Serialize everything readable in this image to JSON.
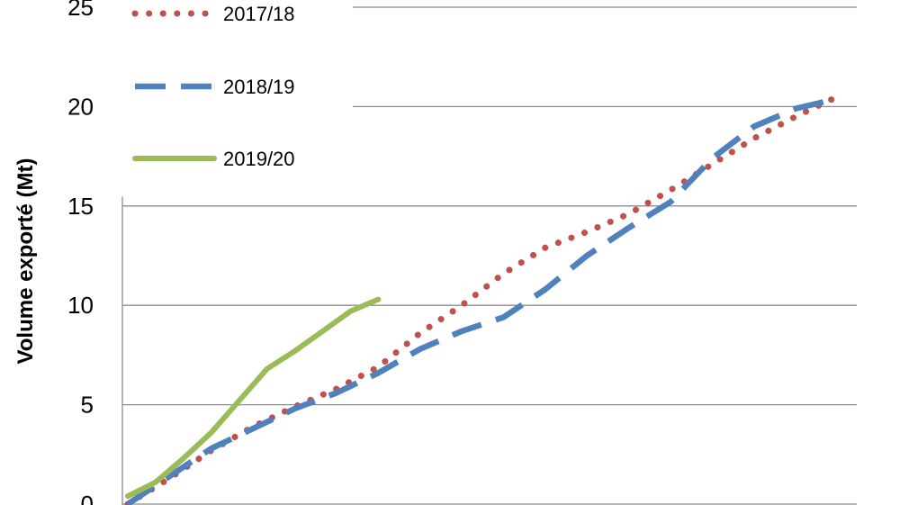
{
  "chart_data": {
    "type": "line",
    "title": "",
    "xlabel": "",
    "ylabel": "Volume exporté (Mt)",
    "ylim": [
      0,
      25
    ],
    "yticks": [
      "0",
      "5",
      "10",
      "15",
      "20",
      "25"
    ],
    "xlim": [
      0,
      52
    ],
    "grid": "horizontal",
    "legend": "top-left",
    "series": [
      {
        "name": "2017/18",
        "color": "#c0504d",
        "style": "dotted",
        "x": [
          0,
          3,
          6,
          9,
          12,
          15,
          18,
          21,
          24,
          27,
          30,
          33,
          36,
          39,
          42,
          45,
          48,
          51
        ],
        "y": [
          0,
          1.3,
          2.7,
          3.9,
          4.9,
          5.8,
          6.9,
          8.6,
          10.0,
          11.6,
          12.9,
          13.7,
          14.6,
          15.8,
          17.1,
          18.4,
          19.5,
          20.5
        ]
      },
      {
        "name": "2018/19",
        "color": "#4f81bd",
        "style": "dashed",
        "x": [
          0,
          3,
          6,
          9,
          12,
          15,
          18,
          21,
          24,
          27,
          30,
          33,
          36,
          39,
          42,
          45,
          48,
          51
        ],
        "y": [
          0,
          1.4,
          2.8,
          3.8,
          4.8,
          5.6,
          6.6,
          7.8,
          8.7,
          9.4,
          10.8,
          12.5,
          13.9,
          15.2,
          17.4,
          19.0,
          19.9,
          20.4
        ]
      },
      {
        "name": "2019/20",
        "color": "#9bbb59",
        "style": "solid",
        "x": [
          0,
          2,
          4,
          6,
          8,
          10,
          12,
          14,
          16,
          18
        ],
        "y": [
          0.4,
          1.1,
          2.3,
          3.6,
          5.2,
          6.8,
          7.7,
          8.7,
          9.7,
          10.3
        ]
      }
    ]
  }
}
